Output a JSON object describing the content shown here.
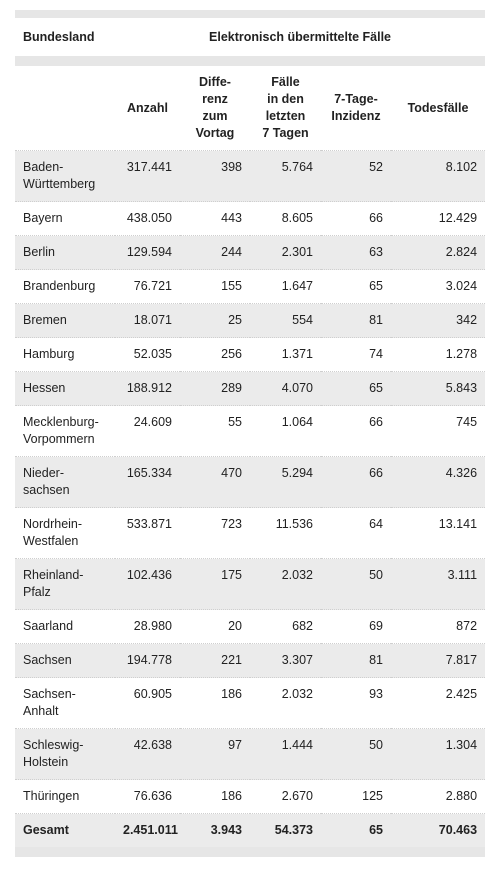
{
  "table": {
    "group_header": [
      "Bundesland",
      "Elektronisch übermittelte Fälle"
    ],
    "columns": [
      "Anzahl",
      "Diffe-\nrenz\nzum\nVortag",
      "Fälle\nin den\nletzten\n7 Tagen",
      "7-Tage-\nInzidenz",
      "Todesfälle"
    ],
    "rows": [
      [
        "Baden-\nWürttemberg",
        "317.441",
        "398",
        "5.764",
        "52",
        "8.102"
      ],
      [
        "Bayern",
        "438.050",
        "443",
        "8.605",
        "66",
        "12.429"
      ],
      [
        "Berlin",
        "129.594",
        "244",
        "2.301",
        "63",
        "2.824"
      ],
      [
        "Brandenburg",
        "76.721",
        "155",
        "1.647",
        "65",
        "3.024"
      ],
      [
        "Bremen",
        "18.071",
        "25",
        "554",
        "81",
        "342"
      ],
      [
        "Hamburg",
        "52.035",
        "256",
        "1.371",
        "74",
        "1.278"
      ],
      [
        "Hessen",
        "188.912",
        "289",
        "4.070",
        "65",
        "5.843"
      ],
      [
        "Mecklenburg-\nVorpommern",
        "24.609",
        "55",
        "1.064",
        "66",
        "745"
      ],
      [
        "Nieder-\nsachsen",
        "165.334",
        "470",
        "5.294",
        "66",
        "4.326"
      ],
      [
        "Nordrhein-\nWestfalen",
        "533.871",
        "723",
        "11.536",
        "64",
        "13.141"
      ],
      [
        "Rheinland-\nPfalz",
        "102.436",
        "175",
        "2.032",
        "50",
        "3.111"
      ],
      [
        "Saarland",
        "28.980",
        "20",
        "682",
        "69",
        "872"
      ],
      [
        "Sachsen",
        "194.778",
        "221",
        "3.307",
        "81",
        "7.817"
      ],
      [
        "Sachsen-\nAnhalt",
        "60.905",
        "186",
        "2.032",
        "93",
        "2.425"
      ],
      [
        "Schleswig-\nHolstein",
        "42.638",
        "97",
        "1.444",
        "50",
        "1.304"
      ],
      [
        "Thüringen",
        "76.636",
        "186",
        "2.670",
        "125",
        "2.880"
      ]
    ],
    "total": [
      "Gesamt",
      "2.451.011",
      "3.943",
      "54.373",
      "65",
      "70.463"
    ]
  }
}
